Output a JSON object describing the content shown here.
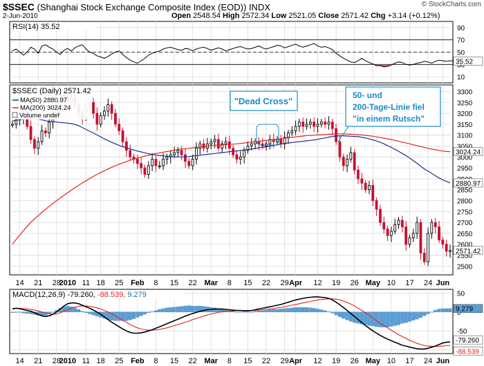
{
  "header": {
    "symbol": "$SSEC",
    "name": "(Shanghai Stock Exchange Composite Index (EOD))",
    "exchange": "INDX",
    "date": "2-Jun-2010",
    "open_label": "Open",
    "open": "2548.54",
    "high_label": "High",
    "high": "2572.34",
    "low_label": "Low",
    "low": "2521.05",
    "close_label": "Close",
    "close": "2571.42",
    "chg_label": "Chg",
    "chg": "+3.14 (+0.12%)",
    "credit": "© StockCharts.com"
  },
  "colors": {
    "up": "#000000",
    "down": "#c8102e",
    "ma50": "#1c2e8c",
    "ma200": "#e3221c",
    "volume": "#5a9ed6",
    "grid": "#d9d9d9",
    "rsi_fill": "#a05a6a",
    "annot": "#1a8ac4"
  },
  "x_axis": {
    "labels": [
      {
        "i": 2,
        "t": "14",
        "bold": false
      },
      {
        "i": 7,
        "t": "21",
        "bold": false
      },
      {
        "i": 12,
        "t": "28",
        "bold": false
      },
      {
        "i": 15,
        "t": "2010",
        "bold": true
      },
      {
        "i": 20,
        "t": "11",
        "bold": false
      },
      {
        "i": 24,
        "t": "18",
        "bold": false
      },
      {
        "i": 29,
        "t": "25",
        "bold": false
      },
      {
        "i": 34,
        "t": "Feb",
        "bold": true
      },
      {
        "i": 39,
        "t": "8",
        "bold": false
      },
      {
        "i": 44,
        "t": "15",
        "bold": false
      },
      {
        "i": 49,
        "t": "22",
        "bold": false
      },
      {
        "i": 54,
        "t": "Mar",
        "bold": true
      },
      {
        "i": 59,
        "t": "8",
        "bold": false
      },
      {
        "i": 64,
        "t": "15",
        "bold": false
      },
      {
        "i": 69,
        "t": "22",
        "bold": false
      },
      {
        "i": 74,
        "t": "29",
        "bold": false
      },
      {
        "i": 77,
        "t": "Apr",
        "bold": true
      },
      {
        "i": 83,
        "t": "12",
        "bold": false
      },
      {
        "i": 88,
        "t": "19",
        "bold": false
      },
      {
        "i": 93,
        "t": "26",
        "bold": false
      },
      {
        "i": 98,
        "t": "May",
        "bold": true
      },
      {
        "i": 103,
        "t": "10",
        "bold": false
      },
      {
        "i": 108,
        "t": "17",
        "bold": false
      },
      {
        "i": 113,
        "t": "24",
        "bold": false
      },
      {
        "i": 117,
        "t": "Jun",
        "bold": true
      }
    ]
  },
  "chart_data": [
    {
      "type": "line",
      "panel": "RSI",
      "legend": "RSI(14) 35.52",
      "ylim": [
        0,
        100
      ],
      "y_ticks": [
        10,
        30,
        50,
        70,
        90
      ],
      "reference_lines": [
        30,
        50,
        70
      ],
      "last_value_label": "35.52",
      "values": [
        52,
        55,
        50,
        45,
        50,
        58,
        55,
        48,
        60,
        62,
        58,
        55,
        50,
        46,
        53,
        56,
        52,
        57,
        60,
        62,
        55,
        50,
        48,
        44,
        42,
        40,
        43,
        47,
        50,
        52,
        46,
        41,
        37,
        34,
        32,
        36,
        40,
        45,
        48,
        50,
        52,
        55,
        57,
        58,
        56,
        54,
        53,
        56,
        55,
        52,
        55,
        57,
        58,
        56,
        53,
        55,
        57,
        55,
        52,
        54,
        56,
        58,
        59,
        57,
        55,
        56,
        58,
        60,
        57,
        55,
        57,
        59,
        61,
        60,
        57,
        59,
        61,
        63,
        60,
        58,
        60,
        62,
        64,
        60,
        58,
        59,
        57,
        54,
        48,
        44,
        40,
        37,
        34,
        33,
        36,
        40,
        36,
        33,
        31,
        28,
        28,
        26,
        27,
        29,
        32,
        34,
        33,
        30,
        29,
        30,
        32,
        33,
        35,
        34,
        32,
        35,
        37,
        36,
        35,
        36,
        35.52
      ]
    },
    {
      "type": "line",
      "panel": "Price",
      "legend": [
        "$SSEC (Daily) 2571.42",
        "MA(50) 2880.97",
        "MA(200) 3024.24",
        "Volume undef"
      ],
      "ylim": [
        2460,
        3330
      ],
      "y_ticks": [
        2500,
        2550,
        2600,
        2650,
        2700,
        2750,
        2800,
        2850,
        2900,
        2950,
        3000,
        3050,
        3100,
        3150,
        3200,
        3250,
        3300
      ],
      "value_tags": [
        {
          "series": "MA(200)",
          "text": "3024.24"
        },
        {
          "series": "MA(50)",
          "text": "2880.97"
        },
        {
          "series": "close",
          "text": "2571.42"
        }
      ],
      "close": [
        3150,
        3170,
        3180,
        3200,
        3140,
        3080,
        3040,
        3070,
        3120,
        3110,
        3160,
        3200,
        3230,
        3270,
        3280,
        3250,
        3270,
        3240,
        3200,
        3180,
        3230,
        3250,
        3200,
        3150,
        3190,
        3210,
        3240,
        3200,
        3150,
        3120,
        3070,
        3030,
        3000,
        2990,
        2970,
        2950,
        2920,
        2960,
        2990,
        2960,
        2960,
        2990,
        3000,
        3010,
        3020,
        3030,
        3010,
        2980,
        2960,
        2990,
        3040,
        3060,
        3040,
        3060,
        3070,
        3080,
        3040,
        3060,
        3070,
        3040,
        3010,
        2990,
        3000,
        3030,
        3050,
        3060,
        3070,
        3060,
        3050,
        3060,
        3080,
        3070,
        3080,
        3060,
        3090,
        3110,
        3120,
        3140,
        3160,
        3140,
        3150,
        3160,
        3140,
        3150,
        3160,
        3150,
        3160,
        3130,
        3070,
        3000,
        2960,
        2990,
        3020,
        2940,
        2900,
        2880,
        2850,
        2870,
        2800,
        2760,
        2700,
        2670,
        2640,
        2660,
        2690,
        2710,
        2680,
        2600,
        2630,
        2650,
        2700,
        2560,
        2520,
        2650,
        2700,
        2680,
        2620,
        2600,
        2568.28,
        2571.42
      ],
      "series": [
        {
          "name": "MA(50)",
          "start_index": 0,
          "values": [
            3165,
            3168,
            3171,
            3174,
            3176,
            3177,
            3176,
            3174,
            3170,
            3166,
            3163,
            3161,
            3160,
            3158,
            3157,
            3155,
            3153,
            3149,
            3143,
            3135,
            3126,
            3118,
            3110,
            3101,
            3092,
            3083,
            3075,
            3067,
            3060,
            3053,
            3047,
            3042,
            3037,
            3032,
            3027,
            3023,
            3019,
            3015,
            3012,
            3009,
            3007,
            3005,
            3003,
            3002,
            3001,
            3000,
            3000,
            3001,
            3002,
            3004,
            3006,
            3008,
            3010,
            3012,
            3014,
            3016,
            3018,
            3020,
            3022,
            3024,
            3026,
            3028,
            3030,
            3032,
            3034,
            3036,
            3039,
            3042,
            3044,
            3047,
            3050,
            3053,
            3056,
            3059,
            3062,
            3064,
            3066,
            3068,
            3070,
            3072,
            3074,
            3076,
            3078,
            3081,
            3084,
            3087,
            3091,
            3094,
            3096,
            3097,
            3097,
            3096,
            3095,
            3094,
            3093,
            3090,
            3087,
            3083,
            3078,
            3073,
            3067,
            3060,
            3052,
            3044,
            3035,
            3026,
            3016,
            3006,
            2995,
            2983,
            2971,
            2958,
            2945,
            2935,
            2925,
            2914,
            2904,
            2895,
            2888,
            2880.97
          ]
        },
        {
          "name": "MA(200)",
          "start_index": 0,
          "values": [
            2600,
            2622,
            2643,
            2663,
            2682,
            2700,
            2716,
            2731,
            2746,
            2760,
            2774,
            2787,
            2800,
            2812,
            2824,
            2836,
            2848,
            2859,
            2870,
            2881,
            2891,
            2901,
            2911,
            2920,
            2929,
            2937,
            2945,
            2953,
            2960,
            2967,
            2973,
            2979,
            2985,
            2990,
            2995,
            3000,
            3004,
            3008,
            3012,
            3016,
            3019,
            3022,
            3025,
            3028,
            3031,
            3034,
            3036,
            3038,
            3040,
            3042,
            3044,
            3046,
            3048,
            3050,
            3052,
            3054,
            3055,
            3056,
            3057,
            3058,
            3059,
            3060,
            3062,
            3064,
            3066,
            3068,
            3070,
            3072,
            3074,
            3076,
            3078,
            3080,
            3082,
            3084,
            3086,
            3088,
            3090,
            3092,
            3094,
            3096,
            3098,
            3099,
            3100,
            3101,
            3102,
            3103,
            3104,
            3105,
            3106,
            3106,
            3106,
            3105,
            3104,
            3103,
            3102,
            3101,
            3099,
            3097,
            3095,
            3092,
            3089,
            3086,
            3083,
            3080,
            3076,
            3072,
            3068,
            3064,
            3060,
            3056,
            3052,
            3048,
            3044,
            3040,
            3036,
            3033,
            3030,
            3027,
            3025,
            3024.24
          ]
        }
      ],
      "annotations": [
        {
          "text": "\"Dead Cross\""
        },
        {
          "text": "50- und\n200-Tage-Linie fiel\n\"in einem Rutsch\""
        }
      ]
    },
    {
      "type": "line",
      "panel": "MACD",
      "legend": [
        "MACD(12,26,9)",
        "-79.260,",
        "-88.539,",
        "9.279"
      ],
      "ylim": [
        -110,
        60
      ],
      "y_ticks": [
        -100,
        -50,
        0,
        50
      ],
      "value_tags": [
        {
          "series": "histogram",
          "text": "9.279"
        },
        {
          "series": "MACD",
          "text": "-79.260"
        },
        {
          "series": "signal",
          "text": "-88.539"
        }
      ],
      "series": [
        {
          "name": "MACD",
          "values": [
            8,
            10,
            9,
            6,
            4,
            2,
            -2,
            -6,
            -10,
            -12,
            -10,
            -6,
            0,
            8,
            16,
            22,
            24,
            24,
            22,
            18,
            14,
            10,
            5,
            0,
            -6,
            -13,
            -20,
            -27,
            -33,
            -39,
            -45,
            -50,
            -54,
            -56,
            -56,
            -55,
            -53,
            -50,
            -47,
            -43,
            -39,
            -35,
            -31,
            -27,
            -23,
            -19,
            -15,
            -11,
            -7,
            -4,
            -1,
            2,
            4,
            6,
            7,
            8,
            8,
            8,
            7,
            6,
            5,
            4,
            4,
            3,
            3,
            4,
            6,
            8,
            10,
            12,
            14,
            16,
            18,
            20,
            23,
            26,
            29,
            32,
            34,
            36,
            38,
            39,
            40,
            40,
            39,
            38,
            36,
            32,
            26,
            19,
            12,
            4,
            -4,
            -12,
            -20,
            -28,
            -36,
            -43,
            -50,
            -56,
            -62,
            -67,
            -72,
            -76,
            -80,
            -84,
            -88,
            -90,
            -93,
            -95,
            -97,
            -98,
            -98,
            -96,
            -93,
            -90,
            -86,
            -82,
            -80,
            -79.26
          ]
        },
        {
          "name": "signal",
          "values": [
            10,
            10,
            10,
            9,
            8,
            7,
            5,
            3,
            0,
            -3,
            -5,
            -6,
            -5,
            -2,
            2,
            6,
            10,
            13,
            15,
            16,
            16,
            15,
            13,
            11,
            8,
            4,
            0,
            -5,
            -10,
            -16,
            -22,
            -27,
            -33,
            -38,
            -42,
            -45,
            -47,
            -48,
            -48,
            -47,
            -46,
            -44,
            -42,
            -39,
            -36,
            -33,
            -30,
            -27,
            -24,
            -20,
            -17,
            -14,
            -11,
            -8,
            -5,
            -3,
            -1,
            1,
            2,
            3,
            3,
            4,
            4,
            4,
            4,
            4,
            4,
            5,
            6,
            7,
            8,
            9,
            11,
            12,
            14,
            16,
            18,
            20,
            22,
            24,
            26,
            28,
            30,
            32,
            33,
            34,
            35,
            35,
            34,
            32,
            29,
            25,
            21,
            16,
            10,
            4,
            -2,
            -9,
            -16,
            -23,
            -30,
            -36,
            -42,
            -48,
            -54,
            -60,
            -65,
            -70,
            -75,
            -79,
            -83,
            -86,
            -89,
            -90,
            -91,
            -91,
            -91,
            -90,
            -89,
            -88.539
          ]
        },
        {
          "name": "histogram",
          "values": [
            -2,
            0,
            -1,
            -3,
            -4,
            -5,
            -7,
            -9,
            -10,
            -9,
            -5,
            0,
            5,
            10,
            14,
            16,
            14,
            11,
            7,
            2,
            -2,
            -5,
            -8,
            -11,
            -14,
            -17,
            -20,
            -22,
            -23,
            -23,
            -23,
            -23,
            -21,
            -18,
            -14,
            -10,
            -6,
            -2,
            1,
            4,
            7,
            9,
            11,
            12,
            13,
            14,
            15,
            16,
            17,
            16,
            16,
            16,
            15,
            14,
            12,
            11,
            9,
            7,
            5,
            3,
            2,
            0,
            0,
            -1,
            -1,
            0,
            2,
            3,
            4,
            5,
            6,
            7,
            7,
            8,
            9,
            10,
            11,
            12,
            12,
            12,
            12,
            11,
            10,
            8,
            6,
            4,
            1,
            -3,
            -8,
            -13,
            -17,
            -21,
            -25,
            -28,
            -30,
            -32,
            -34,
            -36,
            -37,
            -39,
            -40,
            -40,
            -40,
            -38,
            -36,
            -34,
            -30,
            -28,
            -25,
            -22,
            -19,
            -15,
            -10,
            -5,
            0,
            5,
            8,
            9,
            9,
            9.279
          ]
        }
      ]
    }
  ]
}
